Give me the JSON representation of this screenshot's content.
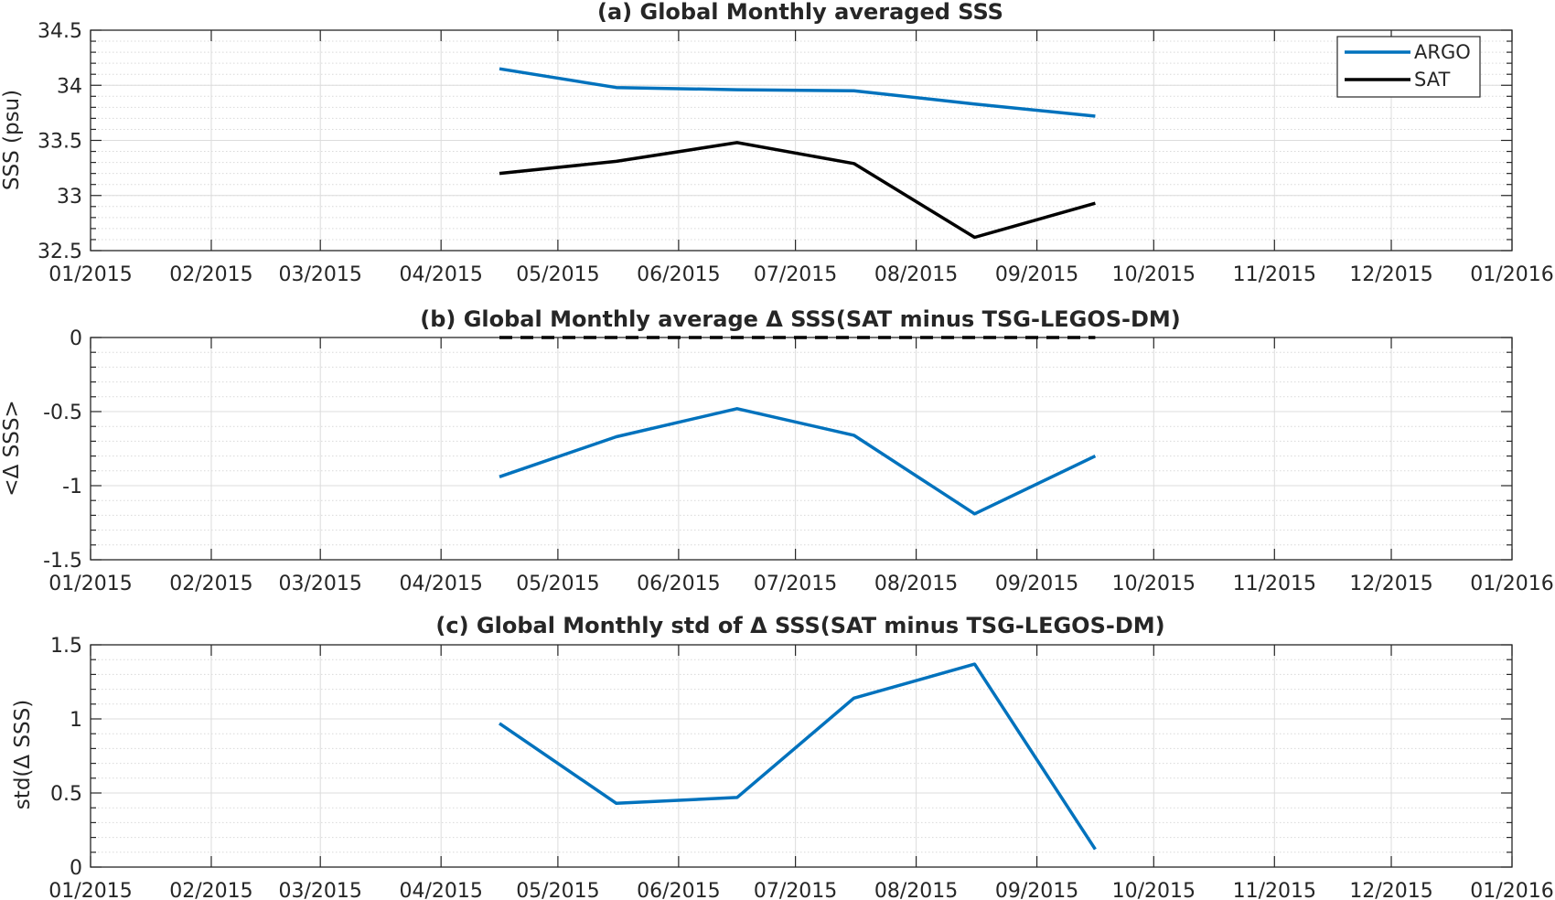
{
  "x_ticks": [
    "01/2015",
    "02/2015",
    "03/2015",
    "04/2015",
    "05/2015",
    "06/2015",
    "07/2015",
    "08/2015",
    "09/2015",
    "10/2015",
    "11/2015",
    "12/2015",
    "01/2016"
  ],
  "chart_data": [
    {
      "type": "line",
      "title": "(a) Global Monthly averaged SSS",
      "ylabel": "SSS (psu)",
      "xlabel": "",
      "xlim": [
        "2015-01-01",
        "2016-01-01"
      ],
      "ylim": [
        32.5,
        34.5
      ],
      "y_ticks": [
        "32.5",
        "33",
        "33.5",
        "34",
        "34.5"
      ],
      "grid": true,
      "legend_position": "top-right",
      "x": [
        "2015-04-16",
        "2015-05-16",
        "2015-06-16",
        "2015-07-16",
        "2015-08-16",
        "2015-09-16"
      ],
      "series": [
        {
          "name": "ARGO",
          "color": "#0072BD",
          "values": [
            34.15,
            33.98,
            33.96,
            33.95,
            33.83,
            33.72
          ]
        },
        {
          "name": "SAT",
          "color": "#000000",
          "values": [
            33.2,
            33.31,
            33.48,
            33.29,
            32.62,
            32.93
          ]
        }
      ]
    },
    {
      "type": "line",
      "title": "(b) Global Monthly average Δ SSS(SAT minus TSG-LEGOS-DM)",
      "ylabel": "<Δ SSS>",
      "xlabel": "",
      "xlim": [
        "2015-01-01",
        "2016-01-01"
      ],
      "ylim": [
        -1.5,
        0
      ],
      "y_ticks": [
        "-1.5",
        "-1",
        "-0.5",
        "0"
      ],
      "grid": true,
      "x": [
        "2015-04-16",
        "2015-05-16",
        "2015-06-16",
        "2015-07-16",
        "2015-08-16",
        "2015-09-16"
      ],
      "series": [
        {
          "color": "#0072BD",
          "values": [
            -0.94,
            -0.67,
            -0.48,
            -0.66,
            -1.19,
            -0.8
          ]
        },
        {
          "color": "#000000",
          "dashed": true,
          "values": [
            0,
            0,
            0,
            0,
            0,
            0
          ]
        }
      ]
    },
    {
      "type": "line",
      "title": "(c) Global Monthly std of Δ SSS(SAT minus TSG-LEGOS-DM)",
      "ylabel": "std(Δ SSS)",
      "xlabel": "",
      "xlim": [
        "2015-01-01",
        "2016-01-01"
      ],
      "ylim": [
        0,
        1.5
      ],
      "y_ticks": [
        "0",
        "0.5",
        "1",
        "1.5"
      ],
      "grid": true,
      "x": [
        "2015-04-16",
        "2015-05-16",
        "2015-06-16",
        "2015-07-16",
        "2015-08-16",
        "2015-09-16"
      ],
      "series": [
        {
          "color": "#0072BD",
          "values": [
            0.97,
            0.43,
            0.47,
            1.14,
            1.37,
            0.12
          ]
        }
      ]
    }
  ]
}
